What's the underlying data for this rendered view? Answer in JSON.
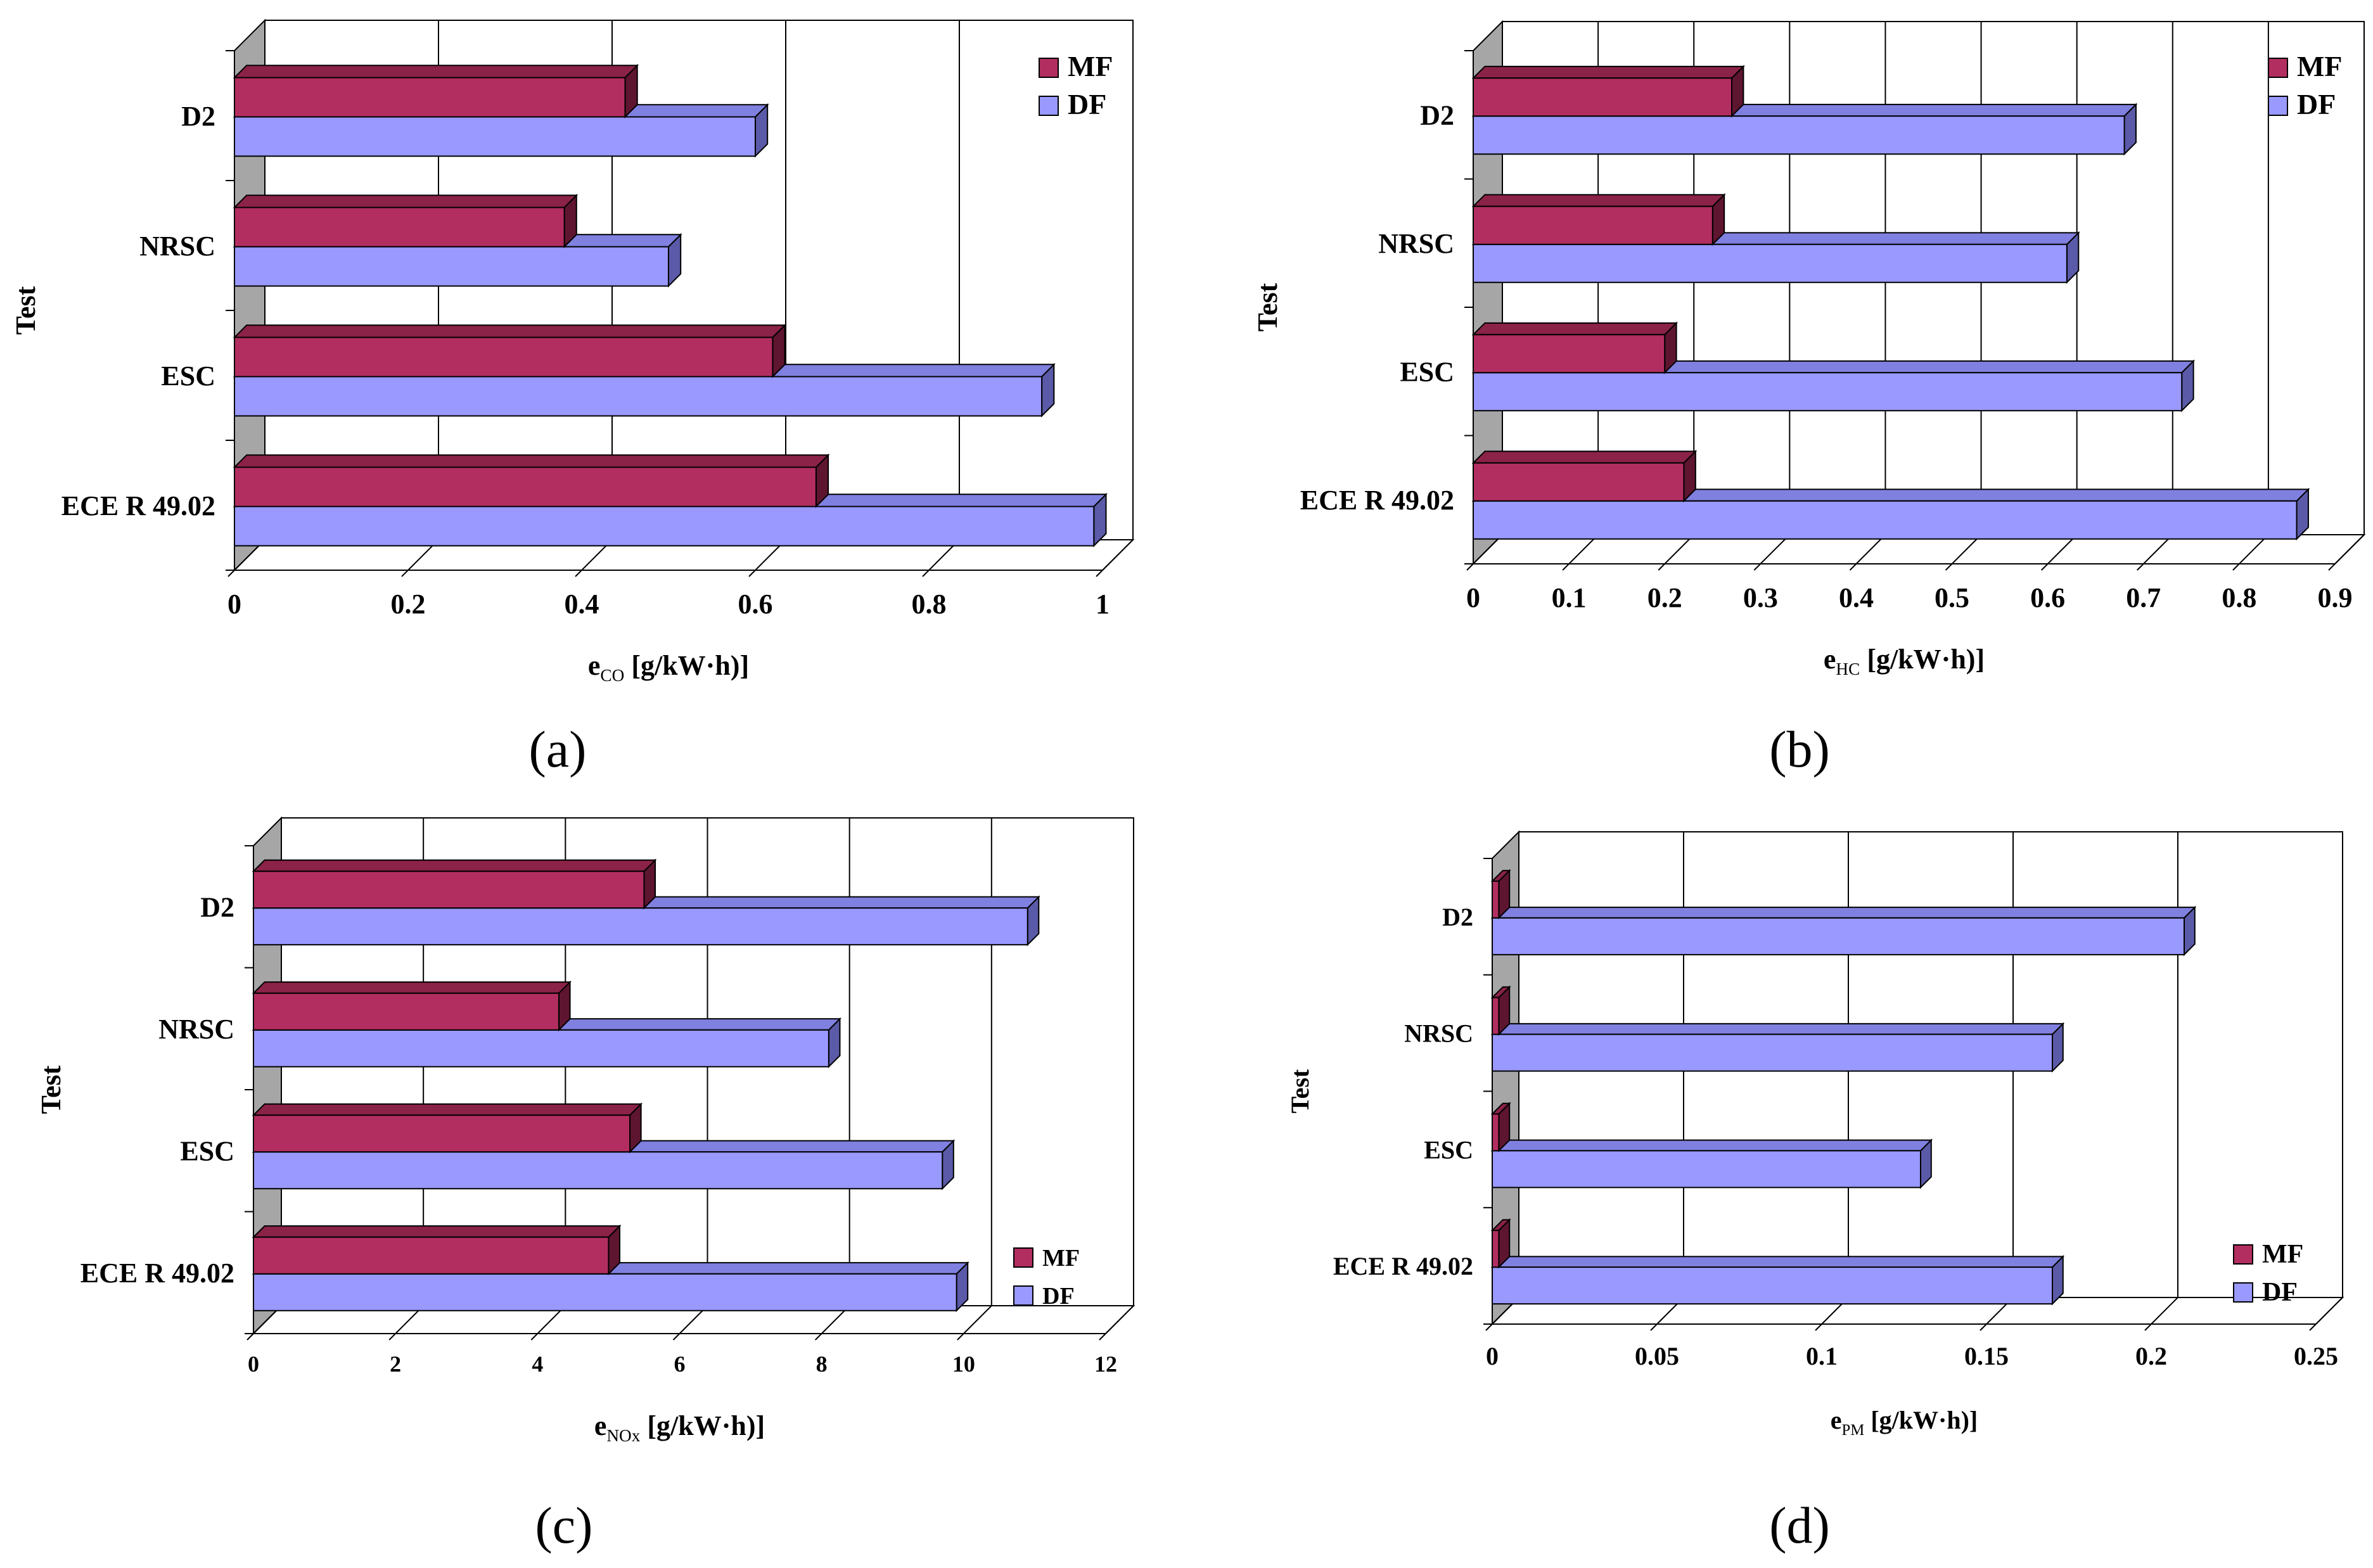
{
  "colors": {
    "MF": "#B22E60",
    "MF_top": "#8B2248",
    "MF_side": "#5E1530",
    "DF": "#9999FF",
    "DF_top": "#8080E0",
    "DF_side": "#5A5AA8",
    "wall": "#A6A6A6",
    "grid": "#000000"
  },
  "chart_data": [
    {
      "type": "bar",
      "orientation": "horizontal",
      "panel_label": "(a)",
      "title": "",
      "xlabel_main": "e",
      "xlabel_sub": "CO",
      "xlabel_unit": " [g/kW·h)]",
      "ylabel": "Test",
      "xlim": [
        0,
        1
      ],
      "ticks": [
        0,
        0.2,
        0.4,
        0.6,
        0.8,
        1
      ],
      "tick_labels": [
        "0",
        "0.2",
        "0.4",
        "0.6",
        "0.8",
        "1"
      ],
      "categories": [
        "ECE R 49.02",
        "ESC",
        "NRSC",
        "D2"
      ],
      "series": [
        {
          "name": "MF",
          "values": [
            0.67,
            0.62,
            0.38,
            0.45
          ]
        },
        {
          "name": "DF",
          "values": [
            0.99,
            0.93,
            0.5,
            0.6
          ]
        }
      ],
      "legend": {
        "position": "top-right",
        "entries": [
          "MF",
          "DF"
        ]
      }
    },
    {
      "type": "bar",
      "orientation": "horizontal",
      "panel_label": "(b)",
      "title": "",
      "xlabel_main": "e",
      "xlabel_sub": "HC",
      "xlabel_unit": " [g/kW·h)]",
      "ylabel": "Test",
      "xlim": [
        0,
        0.9
      ],
      "ticks": [
        0,
        0.1,
        0.2,
        0.3,
        0.4,
        0.5,
        0.6,
        0.7,
        0.8,
        0.9
      ],
      "tick_labels": [
        "0",
        "0.1",
        "0.2",
        "0.3",
        "0.4",
        "0.5",
        "0.6",
        "0.7",
        "0.8",
        "0.9"
      ],
      "categories": [
        "ECE R 49.02",
        "ESC",
        "NRSC",
        "D2"
      ],
      "series": [
        {
          "name": "MF",
          "values": [
            0.22,
            0.2,
            0.25,
            0.27
          ]
        },
        {
          "name": "DF",
          "values": [
            0.86,
            0.74,
            0.62,
            0.68
          ]
        }
      ],
      "legend": {
        "position": "top-right",
        "entries": [
          "MF",
          "DF"
        ]
      }
    },
    {
      "type": "bar",
      "orientation": "horizontal",
      "panel_label": "(c)",
      "title": "",
      "xlabel_main": "e",
      "xlabel_sub": "NOx",
      "xlabel_unit": " [g/kW·h)]",
      "ylabel": "Test",
      "xlim": [
        0,
        12
      ],
      "ticks": [
        0,
        2,
        4,
        6,
        8,
        10,
        12
      ],
      "tick_labels": [
        "0",
        "2",
        "4",
        "6",
        "8",
        "10",
        "12"
      ],
      "categories": [
        "ECE R 49.02",
        "ESC",
        "NRSC",
        "D2"
      ],
      "series": [
        {
          "name": "MF",
          "values": [
            5.0,
            5.3,
            4.3,
            5.5
          ]
        },
        {
          "name": "DF",
          "values": [
            9.9,
            9.7,
            8.1,
            10.9
          ]
        }
      ],
      "legend": {
        "position": "bottom-right",
        "entries": [
          "MF",
          "DF"
        ]
      }
    },
    {
      "type": "bar",
      "orientation": "horizontal",
      "panel_label": "(d)",
      "title": "",
      "xlabel_main": "e",
      "xlabel_sub": "PM",
      "xlabel_unit": " [g/kW·h)]",
      "ylabel": "Test",
      "xlim": [
        0,
        0.25
      ],
      "ticks": [
        0,
        0.05,
        0.1,
        0.15,
        0.2,
        0.25
      ],
      "tick_labels": [
        "0",
        "0.05",
        "0.1",
        "0.15",
        "0.2",
        "0.25"
      ],
      "categories": [
        "ECE R 49.02",
        "ESC",
        "NRSC",
        "D2"
      ],
      "series": [
        {
          "name": "MF",
          "values": [
            0.002,
            0.002,
            0.002,
            0.002
          ]
        },
        {
          "name": "DF",
          "values": [
            0.17,
            0.13,
            0.17,
            0.21
          ]
        }
      ],
      "legend": {
        "position": "bottom-right",
        "entries": [
          "MF",
          "DF"
        ]
      }
    }
  ]
}
